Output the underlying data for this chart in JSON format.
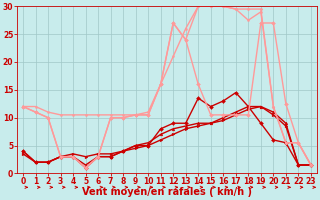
{
  "bg_color": "#c8ecec",
  "grid_color": "#a0c8c8",
  "xlabel": "Vent moyen/en rafales ( km/h )",
  "xlabel_color": "#cc0000",
  "xlabel_fontsize": 7,
  "tick_color": "#cc0000",
  "tick_fontsize": 5.5,
  "xlim": [
    -0.5,
    23.5
  ],
  "ylim": [
    0,
    30
  ],
  "yticks": [
    0,
    5,
    10,
    15,
    20,
    25,
    30
  ],
  "xticks": [
    0,
    1,
    2,
    3,
    4,
    5,
    6,
    7,
    8,
    9,
    10,
    11,
    12,
    13,
    14,
    15,
    16,
    17,
    18,
    19,
    20,
    21,
    22,
    23
  ],
  "series": [
    {
      "x": [
        0,
        1,
        2,
        3,
        4,
        5,
        6,
        7,
        8,
        9,
        10,
        11,
        12,
        13,
        14,
        15,
        16,
        17,
        18,
        19,
        20,
        21,
        22,
        23
      ],
      "y": [
        4,
        2,
        2,
        3,
        3,
        1,
        3,
        3,
        4,
        5,
        5,
        8,
        9,
        9,
        13.5,
        12,
        13,
        14.5,
        12,
        9,
        6,
        5.5,
        1.5,
        1.5
      ],
      "color": "#cc0000",
      "lw": 1.0,
      "marker": "D",
      "ms": 2.0
    },
    {
      "x": [
        0,
        1,
        2,
        3,
        4,
        5,
        6,
        7,
        8,
        9,
        10,
        11,
        12,
        13,
        14,
        15,
        16,
        17,
        18,
        19,
        20,
        21,
        22,
        23
      ],
      "y": [
        4,
        2,
        2,
        3,
        3,
        1.5,
        3,
        3,
        4,
        5,
        5.5,
        7,
        8,
        8.5,
        9,
        9,
        10,
        11,
        12,
        12,
        11,
        9,
        1.5,
        1.5
      ],
      "color": "#cc0000",
      "lw": 1.0,
      "marker": "^",
      "ms": 2.0
    },
    {
      "x": [
        0,
        1,
        2,
        3,
        4,
        5,
        6,
        7,
        8,
        9,
        10,
        11,
        12,
        13,
        14,
        15,
        16,
        17,
        18,
        19,
        20,
        21,
        22,
        23
      ],
      "y": [
        3.5,
        2,
        2,
        3,
        3.5,
        3,
        3.5,
        3.5,
        4,
        4.5,
        5,
        6,
        7,
        8,
        8.5,
        9,
        9.5,
        10.5,
        11.5,
        12,
        10.5,
        8.5,
        1.5,
        1.5
      ],
      "color": "#cc0000",
      "lw": 1.0,
      "marker": ">",
      "ms": 2.0
    },
    {
      "x": [
        0,
        1,
        2,
        3,
        4,
        5,
        6,
        7,
        8,
        9,
        10,
        11,
        12,
        13,
        14,
        15,
        16,
        17,
        18,
        19,
        20,
        21,
        22,
        23
      ],
      "y": [
        12,
        11,
        10,
        3,
        3,
        1,
        3,
        10,
        10,
        10.5,
        10.5,
        16,
        27,
        24,
        16,
        10.5,
        10.5,
        10.5,
        10.5,
        27,
        27,
        12.5,
        5.5,
        1.5
      ],
      "color": "#ff9999",
      "lw": 1.0,
      "marker": "D",
      "ms": 2.0
    },
    {
      "x": [
        0,
        1,
        2,
        3,
        4,
        5,
        6,
        7,
        8,
        9,
        10,
        11,
        12,
        13,
        14,
        15,
        16,
        17,
        18,
        19,
        20,
        21,
        22,
        23
      ],
      "y": [
        12,
        11,
        10,
        3,
        3,
        1,
        3,
        10,
        10,
        10.5,
        10.5,
        16,
        27,
        24,
        30,
        30,
        30,
        29.5,
        29.5,
        29.5,
        12,
        5.5,
        5.5,
        1.5
      ],
      "color": "#ff9999",
      "lw": 1.0,
      "marker": "D",
      "ms": 1.5
    },
    {
      "x": [
        0,
        1,
        2,
        3,
        4,
        5,
        6,
        7,
        8,
        9,
        10,
        11,
        12,
        13,
        14,
        15,
        16,
        17,
        18,
        19,
        20,
        21,
        22,
        23
      ],
      "y": [
        12,
        12,
        11,
        10.5,
        10.5,
        10.5,
        10.5,
        10.5,
        10.5,
        10.5,
        11,
        16,
        21,
        26,
        30,
        30,
        30,
        29.5,
        27.5,
        29,
        12,
        5.5,
        5.5,
        1.5
      ],
      "color": "#ff9999",
      "lw": 1.0,
      "marker": "o",
      "ms": 1.5
    }
  ],
  "arrow_color": "#cc0000"
}
